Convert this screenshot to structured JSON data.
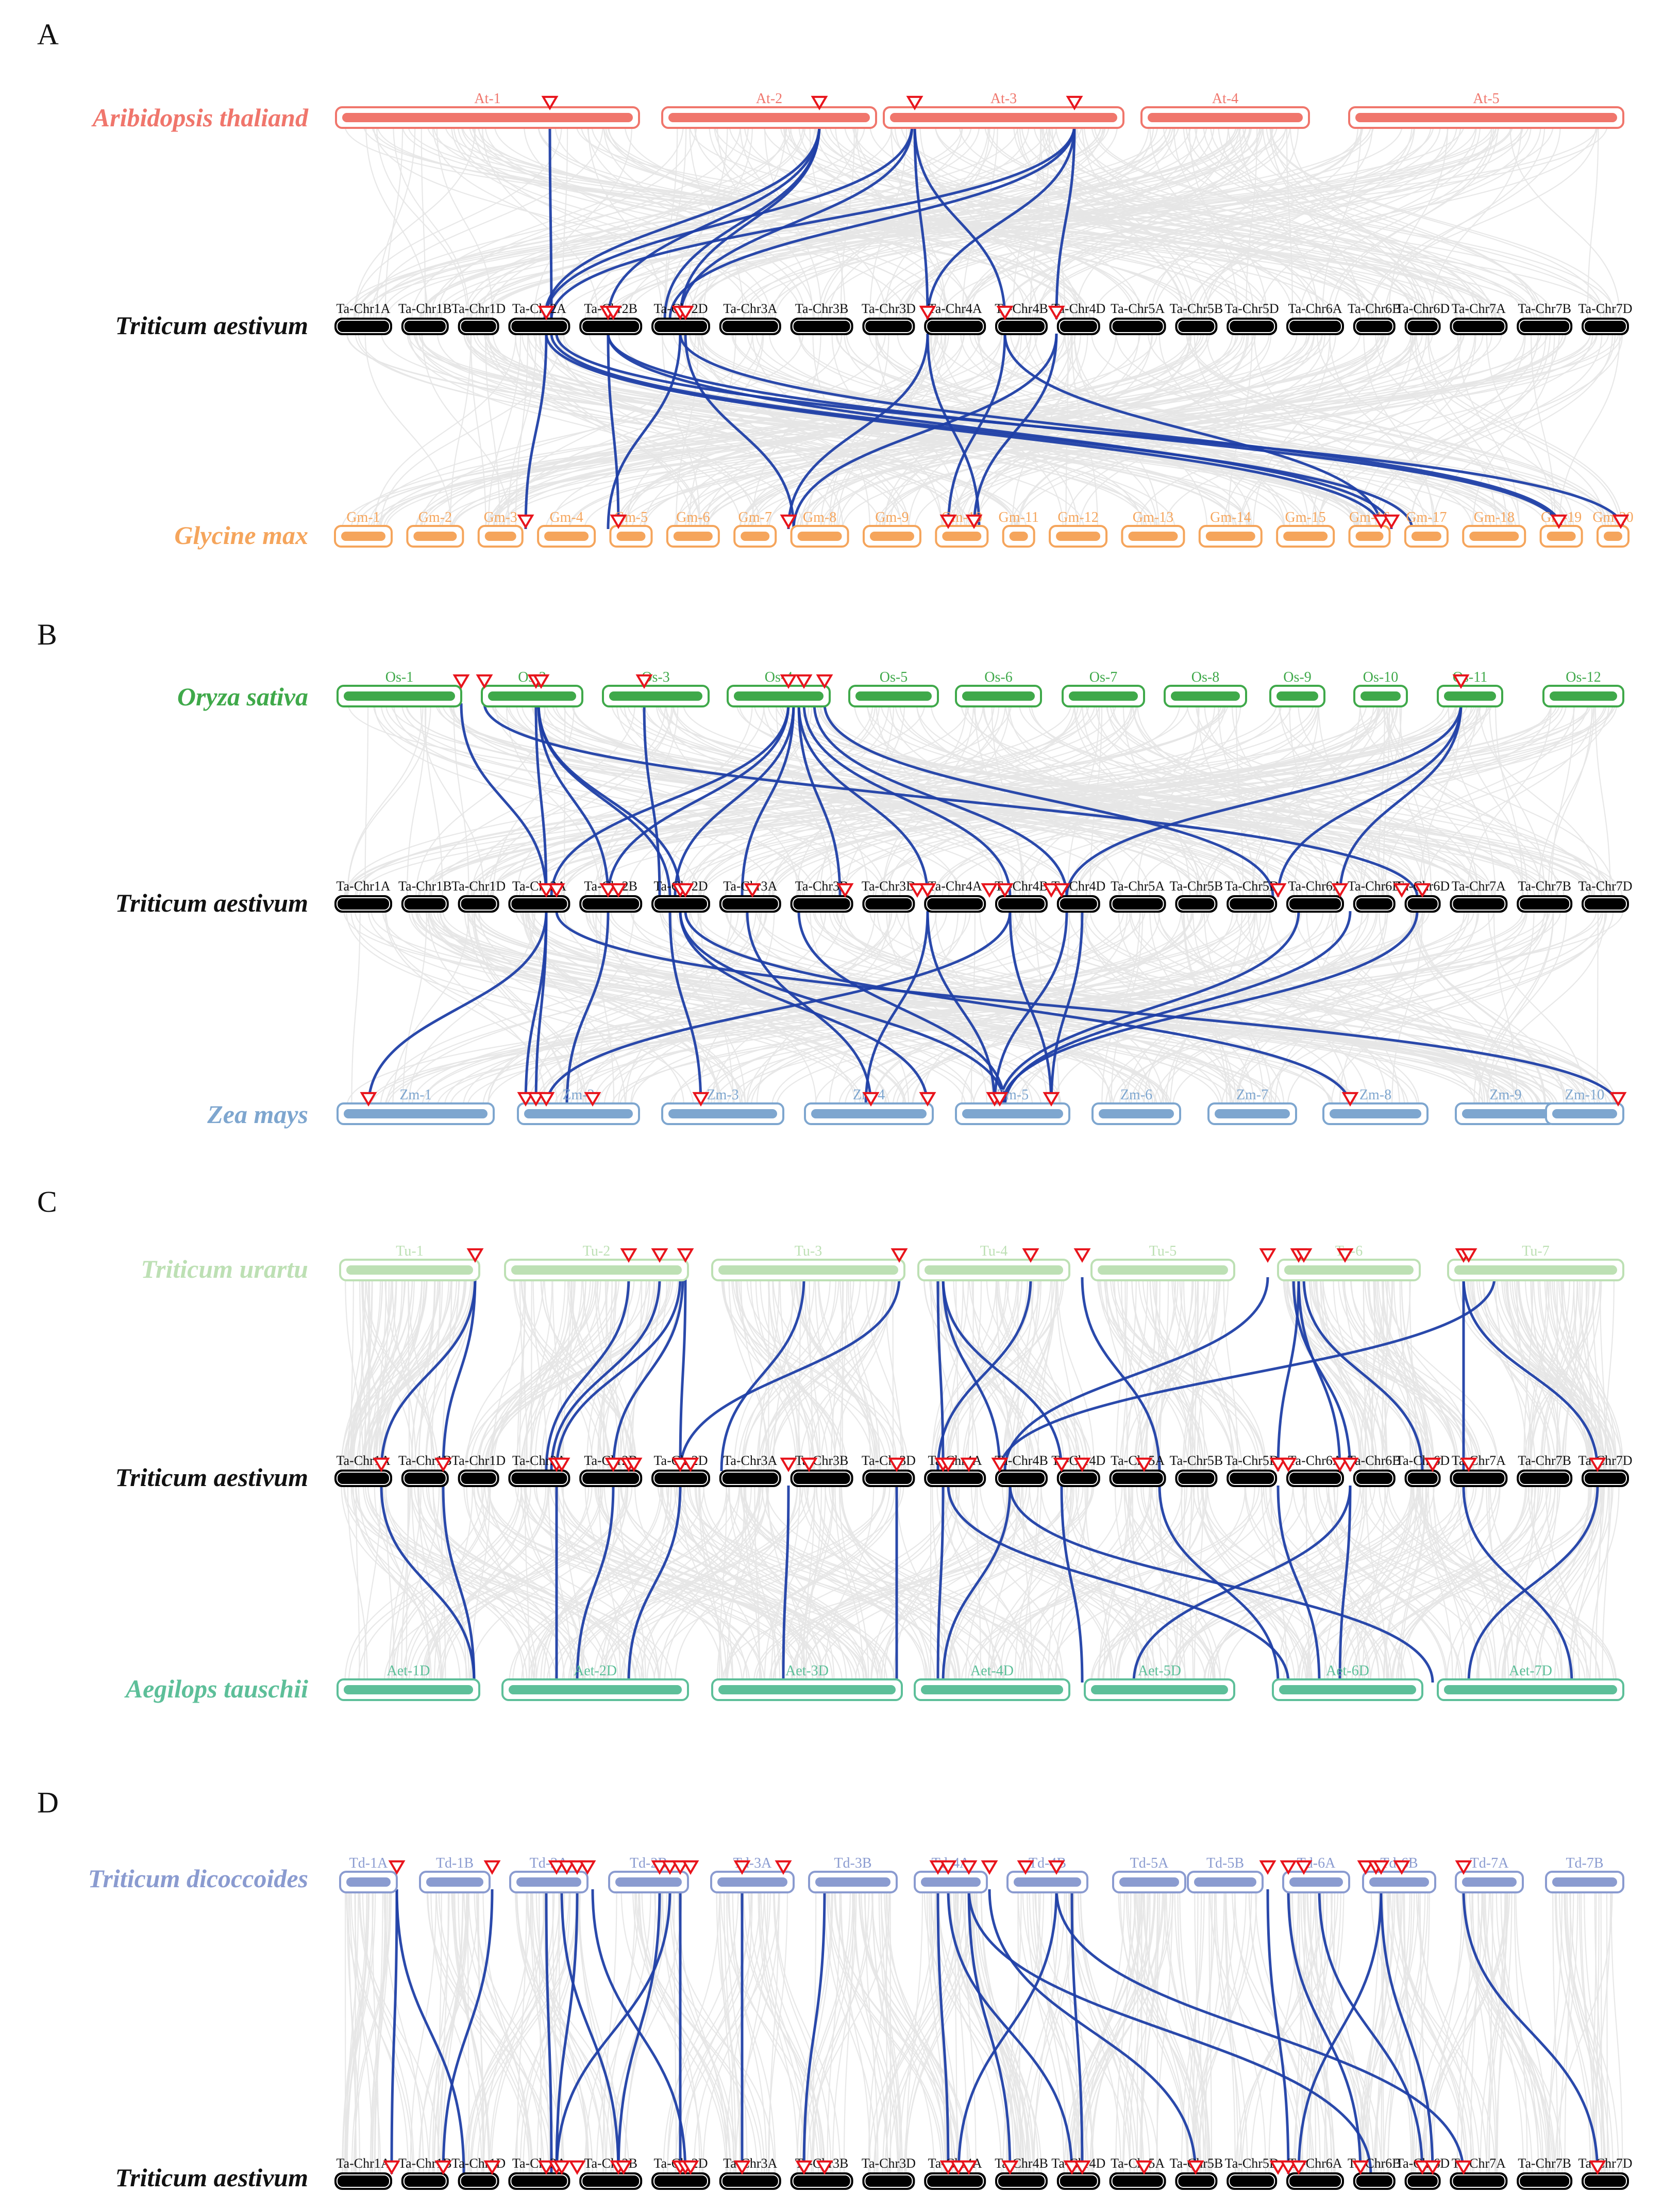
{
  "colors": {
    "background_links": "#e6e6e6",
    "highlight_links": "#1f3fa6",
    "marker": "#e8141c",
    "wheat": "#000000"
  },
  "wheat_chromosomes": [
    "Ta-Chr1A",
    "Ta-Chr1B",
    "Ta-Chr1D",
    "Ta-Chr2A",
    "Ta-Chr2B",
    "Ta-Chr2D",
    "Ta-Chr3A",
    "Ta-Chr3B",
    "Ta-Chr3D",
    "Ta-Chr4A",
    "Ta-Chr4B",
    "Ta-Chr4D",
    "Ta-Chr5A",
    "Ta-Chr5B",
    "Ta-Chr5D",
    "Ta-Chr6A",
    "Ta-Chr6B",
    "Ta-Chr6D",
    "Ta-Chr7A",
    "Ta-Chr7B",
    "Ta-Chr7D"
  ],
  "wheat_species": "Triticum aestivum",
  "panels": [
    {
      "letter": "A",
      "top": {
        "species": "Aribidopsis thaliand",
        "color": "#f0766c",
        "chromosomes": [
          "At-1",
          "At-2",
          "At-3",
          "At-4",
          "At-5"
        ]
      },
      "bottom": {
        "species": "Glycine max",
        "color": "#f5a55c",
        "chromosomes": [
          "Gm-1",
          "Gm-2",
          "Gm-3",
          "Gm-4",
          "Gm-5",
          "Gm-6",
          "Gm-7",
          "Gm-8",
          "Gm-9",
          "Gm-10",
          "Gm-11",
          "Gm-12",
          "Gm-13",
          "Gm-14",
          "Gm-15",
          "Gm-16",
          "Gm-17",
          "Gm-18",
          "Gm-19",
          "Gm-20"
        ]
      }
    },
    {
      "letter": "B",
      "top": {
        "species": "Oryza sativa",
        "color": "#3fa94a",
        "chromosomes": [
          "Os-1",
          "Os-2",
          "Os-3",
          "Os-4",
          "Os-5",
          "Os-6",
          "Os-7",
          "Os-8",
          "Os-9",
          "Os-10",
          "Os-11",
          "Os-12"
        ]
      },
      "bottom": {
        "species": "Zea mays",
        "color": "#7ea6cf",
        "chromosomes": [
          "Zm-1",
          "Zm-2",
          "Zm-3",
          "Zm-4",
          "Zm-5",
          "Zm-6",
          "Zm-7",
          "Zm-8",
          "Zm-9",
          "Zm-10"
        ]
      }
    },
    {
      "letter": "C",
      "top": {
        "species": "Triticum urartu",
        "color": "#bde0b4",
        "chromosomes": [
          "Tu-1",
          "Tu-2",
          "Tu-3",
          "Tu-4",
          "Tu-5",
          "Tu-6",
          "Tu-7"
        ]
      },
      "bottom": {
        "species": "Aegilops tauschii",
        "color": "#5dbf99",
        "chromosomes": [
          "Aet-1D",
          "Aet-2D",
          "Aet-3D",
          "Aet-4D",
          "Aet-5D",
          "Aet-6D",
          "Aet-7D"
        ]
      }
    },
    {
      "letter": "D",
      "top": {
        "species": "Triticum dicoccoides",
        "color": "#8a9bd0",
        "chromosomes": [
          "Td-1A",
          "Td-1B",
          "Td-2A",
          "Td-2B",
          "Td-3A",
          "Td-3B",
          "Td-4A",
          "Td-4B",
          "Td-5A",
          "Td-5B",
          "Td-6A",
          "Td-6B",
          "Td-7A",
          "Td-7B"
        ]
      },
      "bottom": null
    }
  ]
}
